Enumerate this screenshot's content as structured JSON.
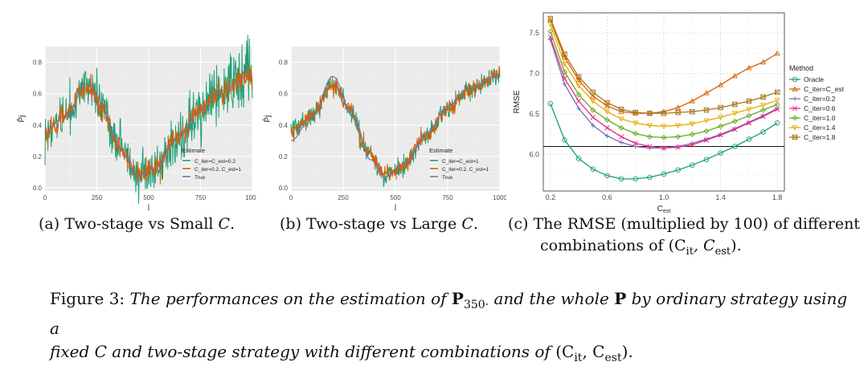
{
  "chart_data": [
    {
      "type": "line",
      "panel": "a",
      "xlabel": "j",
      "ylabel": "P̂j",
      "xlim": [
        0,
        1000
      ],
      "ylim": [
        -0.02,
        0.9
      ],
      "x_ticks": [
        "0",
        "250",
        "500",
        "750",
        "1000"
      ],
      "y_ticks": [
        "0.0",
        "0.2",
        "0.4",
        "0.6",
        "0.8"
      ],
      "legend_title": "Estimate",
      "legend_position": "bottom-right",
      "series": [
        {
          "name": "C_iter=C_est=0.2",
          "color": "#1b9e77",
          "noise": 0.075
        },
        {
          "name": "C_iter=0.2, C_est=1",
          "color": "#d95f02",
          "noise": 0.035
        },
        {
          "name": "True",
          "color": "#7570b3",
          "noise": 0
        }
      ]
    },
    {
      "type": "line",
      "panel": "b",
      "xlabel": "j",
      "ylabel": "P̂j",
      "xlim": [
        0,
        1000
      ],
      "ylim": [
        -0.02,
        0.9
      ],
      "x_ticks": [
        "0",
        "250",
        "500",
        "750",
        "1000"
      ],
      "y_ticks": [
        "0.0",
        "0.2",
        "0.4",
        "0.6",
        "0.8"
      ],
      "legend_title": "Estimate",
      "legend_position": "bottom-right",
      "series": [
        {
          "name": "C_iter=C_est=1",
          "color": "#1b9e77",
          "noise": 0.03
        },
        {
          "name": "C_iter=0.2, C_est=1",
          "color": "#d95f02",
          "noise": 0.025
        },
        {
          "name": "True",
          "color": "#7570b3",
          "noise": 0
        }
      ]
    },
    {
      "type": "line",
      "panel": "c",
      "xlabel": "Cest",
      "ylabel": "RMSE",
      "xlim": [
        0.15,
        1.85
      ],
      "ylim": [
        5.55,
        7.75
      ],
      "x_ticks": [
        0.2,
        0.6,
        1.0,
        1.4,
        1.8
      ],
      "y_ticks": [
        6.0,
        6.5,
        7.0,
        7.5
      ],
      "hline": 6.1,
      "legend_title": "Method",
      "legend_position": "right",
      "x": [
        0.2,
        0.3,
        0.4,
        0.5,
        0.6,
        0.7,
        0.8,
        0.9,
        1.0,
        1.1,
        1.2,
        1.3,
        1.4,
        1.5,
        1.6,
        1.7,
        1.8
      ],
      "series": [
        {
          "name": "Oracle",
          "color": "#1b9e77",
          "marker": "circle",
          "values": [
            6.63,
            6.18,
            5.95,
            5.82,
            5.74,
            5.7,
            5.7,
            5.72,
            5.76,
            5.81,
            5.87,
            5.94,
            6.02,
            6.1,
            6.19,
            6.28,
            6.39
          ]
        },
        {
          "name": "C_iter=C_est",
          "color": "#d95f02",
          "marker": "triangle",
          "values": [
            7.66,
            7.2,
            6.92,
            6.72,
            6.6,
            6.53,
            6.51,
            6.51,
            6.53,
            6.58,
            6.66,
            6.76,
            6.86,
            6.97,
            7.07,
            7.14,
            7.25
          ]
        },
        {
          "name": "C_iter=0.2",
          "color": "#7570b3",
          "marker": "plus",
          "values": [
            7.42,
            6.87,
            6.57,
            6.36,
            6.23,
            6.15,
            6.1,
            6.08,
            6.08,
            6.1,
            6.14,
            6.19,
            6.25,
            6.32,
            6.4,
            6.48,
            6.57
          ]
        },
        {
          "name": "C_iter=0.6",
          "color": "#e7298a",
          "marker": "x",
          "values": [
            7.45,
            6.94,
            6.66,
            6.46,
            6.33,
            6.22,
            6.14,
            6.1,
            6.08,
            6.09,
            6.12,
            6.18,
            6.24,
            6.31,
            6.39,
            6.47,
            6.56
          ]
        },
        {
          "name": "C_iter=1.0",
          "color": "#66a61e",
          "marker": "diamond",
          "values": [
            7.52,
            7.02,
            6.74,
            6.55,
            6.43,
            6.33,
            6.26,
            6.22,
            6.21,
            6.22,
            6.25,
            6.29,
            6.35,
            6.41,
            6.48,
            6.55,
            6.62
          ]
        },
        {
          "name": "C_iter=1.4",
          "color": "#e6ab02",
          "marker": "tri-down",
          "values": [
            7.61,
            7.12,
            6.85,
            6.66,
            6.53,
            6.44,
            6.39,
            6.36,
            6.35,
            6.36,
            6.38,
            6.42,
            6.46,
            6.51,
            6.56,
            6.61,
            6.67
          ]
        },
        {
          "name": "C_iter=1.8",
          "color": "#a6761d",
          "marker": "boxtimes",
          "values": [
            7.68,
            7.24,
            6.96,
            6.77,
            6.64,
            6.56,
            6.52,
            6.51,
            6.51,
            6.52,
            6.53,
            6.55,
            6.58,
            6.62,
            6.66,
            6.71,
            6.77
          ]
        }
      ]
    }
  ],
  "subcaptions": {
    "a": {
      "prefix": "(a)  Two-stage vs Small ",
      "var": "C",
      "suffix": "."
    },
    "b": {
      "prefix": "(b)  Two-stage vs Large ",
      "var": "C",
      "suffix": "."
    },
    "c": {
      "line1": "(c)  The RMSE (multiplied by 100) of different",
      "line2": "combinations of (C",
      "it": "it",
      "mid": ", C",
      "est": "est",
      "end": ")."
    }
  },
  "figure_caption": {
    "label": "Figure 3: ",
    "t1": "The performances on the estimation of ",
    "P350": "P",
    "sub350": "350·",
    "t2": " and the whole ",
    "P": "P",
    "t3": " by ordinary strategy using a",
    "t4": "fixed ",
    "C": "C",
    "t5": " and two-stage strategy with different combinations of ",
    "combo": "(C",
    "it": "it",
    "mid": ", C",
    "est": "est",
    "end": ")."
  }
}
